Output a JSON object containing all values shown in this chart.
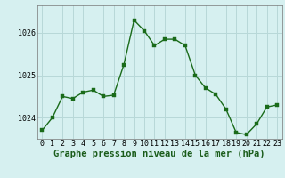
{
  "x": [
    0,
    1,
    2,
    3,
    4,
    5,
    6,
    7,
    8,
    9,
    10,
    11,
    12,
    13,
    14,
    15,
    16,
    17,
    18,
    19,
    20,
    21,
    22,
    23
  ],
  "y": [
    1023.7,
    1024.0,
    1024.5,
    1024.45,
    1024.6,
    1024.65,
    1024.5,
    1024.53,
    1025.25,
    1026.3,
    1026.05,
    1025.7,
    1025.85,
    1025.85,
    1025.7,
    1025.0,
    1024.7,
    1024.55,
    1024.2,
    1023.65,
    1023.6,
    1023.85,
    1024.25,
    1024.3
  ],
  "line_color": "#1a6b1a",
  "marker_color": "#1a6b1a",
  "bg_color": "#d6f0f0",
  "grid_color": "#b8d8d8",
  "title": "Graphe pression niveau de la mer (hPa)",
  "ylim_min": 1023.5,
  "ylim_max": 1026.65,
  "yticks": [
    1024,
    1025,
    1026
  ],
  "ytick_labels": [
    "1024",
    "1025",
    "1026"
  ],
  "xticks": [
    0,
    1,
    2,
    3,
    4,
    5,
    6,
    7,
    8,
    9,
    10,
    11,
    12,
    13,
    14,
    15,
    16,
    17,
    18,
    19,
    20,
    21,
    22,
    23
  ],
  "title_fontsize": 7.5,
  "tick_fontsize": 6,
  "line_width": 1.0,
  "marker_size": 2.5
}
